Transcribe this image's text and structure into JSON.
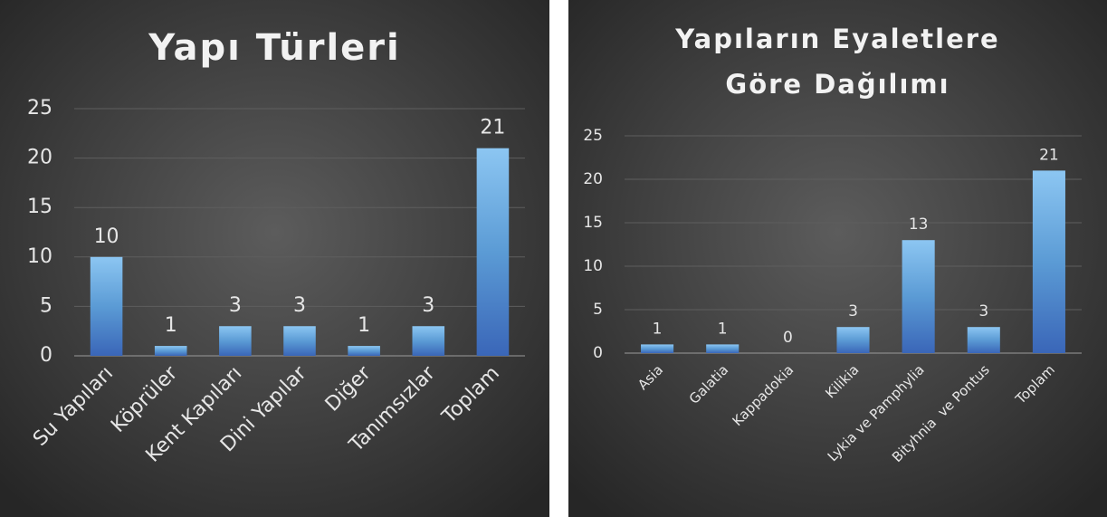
{
  "chart_data": [
    {
      "type": "bar",
      "title": [
        "Yapı Türleri"
      ],
      "categories": [
        "Su Yapıları",
        "Köprüler",
        "Kent Kapıları",
        "Dini Yapılar",
        "Diğer",
        "Tanımsızlar",
        "Toplam"
      ],
      "values": [
        10,
        1,
        3,
        3,
        1,
        3,
        21
      ],
      "color": "#5b9bd5",
      "ylim": [
        0,
        25
      ],
      "yticks": [
        0,
        5,
        10,
        15,
        20,
        25
      ],
      "grid": true
    },
    {
      "type": "bar",
      "title": [
        "Yapıların Eyaletlere",
        "Göre Dağılımı"
      ],
      "categories": [
        "Asia",
        "Galatia",
        "Kappadokia",
        "Kilikia",
        "Lykia ve Pamphylia",
        "Bityhnia  ve Pontus",
        "Toplam"
      ],
      "values": [
        1,
        1,
        0,
        3,
        13,
        3,
        21
      ],
      "color": "#5b9bd5",
      "ylim": [
        0,
        25
      ],
      "yticks": [
        0,
        5,
        10,
        15,
        20,
        25
      ],
      "grid": true
    }
  ]
}
